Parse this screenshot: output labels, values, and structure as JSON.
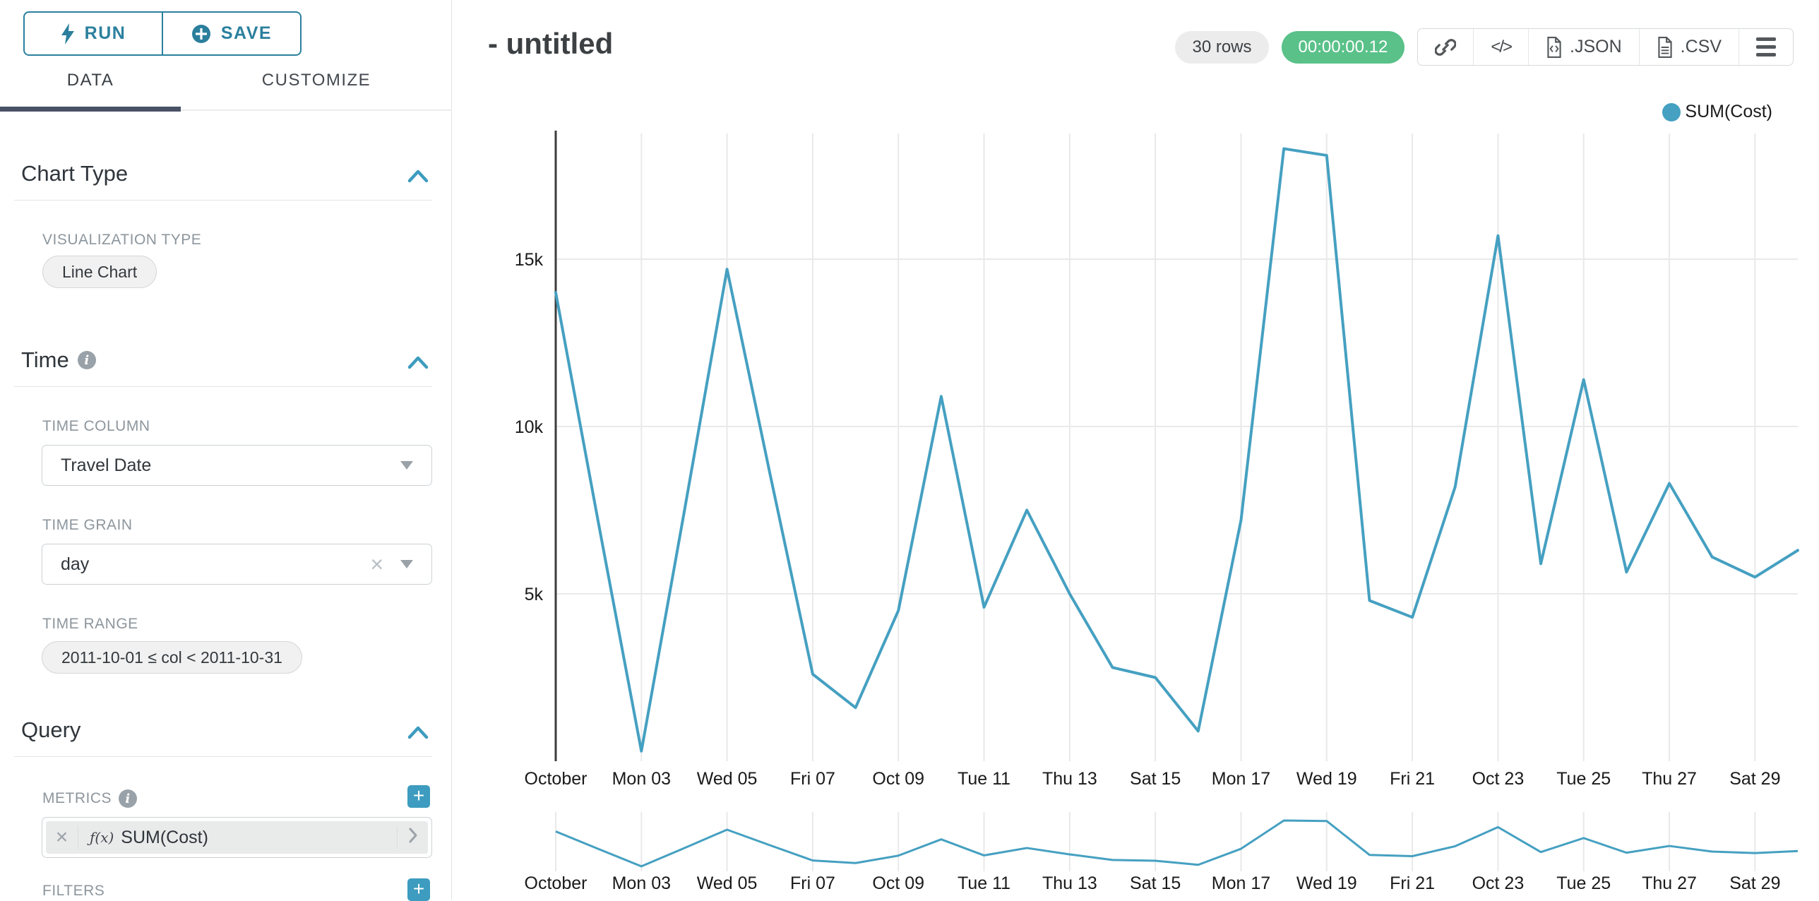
{
  "sidebar": {
    "run_label": "RUN",
    "save_label": "SAVE",
    "tabs": {
      "data": "DATA",
      "customize": "CUSTOMIZE"
    },
    "chart_type": {
      "title": "Chart Type",
      "viz_label": "VISUALIZATION TYPE",
      "viz_value": "Line Chart"
    },
    "time": {
      "title": "Time",
      "column_label": "TIME COLUMN",
      "column_value": "Travel Date",
      "grain_label": "TIME GRAIN",
      "grain_value": "day",
      "range_label": "TIME RANGE",
      "range_value": "2011-10-01 ≤ col < 2011-10-31"
    },
    "query": {
      "title": "Query",
      "metrics_label": "METRICS",
      "metric_fx": "ƒ(x)",
      "metric_value": "SUM(Cost)",
      "filters_label": "FILTERS"
    }
  },
  "header": {
    "title": "- untitled",
    "rows_badge": "30 rows",
    "timer_badge": "00:00:00.12",
    "code_glyph": "</>",
    "export_json_label": ".JSON",
    "export_csv_label": ".CSV"
  },
  "chart_data": {
    "type": "line",
    "title": "",
    "x": [
      "2011-10-01",
      "2011-10-02",
      "2011-10-03",
      "2011-10-04",
      "2011-10-05",
      "2011-10-06",
      "2011-10-07",
      "2011-10-08",
      "2011-10-09",
      "2011-10-10",
      "2011-10-11",
      "2011-10-12",
      "2011-10-13",
      "2011-10-14",
      "2011-10-15",
      "2011-10-16",
      "2011-10-17",
      "2011-10-18",
      "2011-10-19",
      "2011-10-20",
      "2011-10-21",
      "2011-10-22",
      "2011-10-23",
      "2011-10-24",
      "2011-10-25",
      "2011-10-26",
      "2011-10-27",
      "2011-10-28",
      "2011-10-29",
      "2011-10-30"
    ],
    "series": [
      {
        "name": "SUM(Cost)",
        "values": [
          14000,
          7100,
          300,
          7450,
          14700,
          8600,
          2600,
          1600,
          4500,
          10900,
          4600,
          7500,
          5000,
          2800,
          2500,
          900,
          7200,
          18300,
          18100,
          4800,
          4300,
          8200,
          15700,
          5900,
          11400,
          5650,
          8300,
          6100,
          5500,
          6300
        ]
      }
    ],
    "x_tick_labels": [
      "October",
      "Mon 03",
      "Wed 05",
      "Fri 07",
      "Oct 09",
      "Tue 11",
      "Thu 13",
      "Sat 15",
      "Mon 17",
      "Wed 19",
      "Fri 21",
      "Oct 23",
      "Tue 25",
      "Thu 27",
      "Sat 29"
    ],
    "y_tick_labels": [
      "5k",
      "10k",
      "15k"
    ],
    "y_tick_values": [
      5000,
      10000,
      15000
    ],
    "ylim": [
      0,
      18800
    ],
    "grid": true,
    "legend": {
      "label": "SUM(Cost)",
      "position": "top-right"
    },
    "has_mini_range_chart": true,
    "colors": {
      "line": "#45a0c1",
      "grid": "#e9e9e9",
      "axis": "#3c3c3c",
      "tick_label": "#1a1a1a"
    }
  }
}
